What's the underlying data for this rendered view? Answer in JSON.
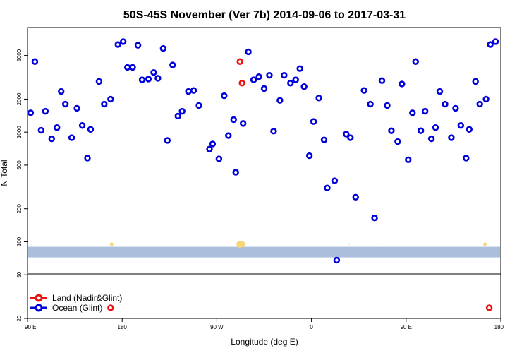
{
  "chart_data": {
    "type": "scatter",
    "title": "50S-45S November (Ver 7b)   2014-09-06 to 2017-03-31",
    "xlabel": "Longitude (deg E)",
    "ylabel": "N Total",
    "x_ticks": [
      {
        "value": 90,
        "label": "90 E"
      },
      {
        "value": 180,
        "label": "180"
      },
      {
        "value": 270,
        "label": "90 W"
      },
      {
        "value": 360,
        "label": "0"
      },
      {
        "value": 450,
        "label": "90 E"
      },
      {
        "value": 540,
        "label": "180"
      }
    ],
    "xlim": [
      90,
      540
    ],
    "y_scale": "log",
    "ylim": [
      20,
      9000
    ],
    "y_ticks": [
      20,
      50,
      100,
      200,
      500,
      1000,
      2000,
      5000
    ],
    "colors": {
      "ocean": "#0000dd",
      "land": "#ee1111",
      "band": "#a9bfdc",
      "sun": "#f5d77a"
    },
    "legend": {
      "placement": "bottom-left",
      "entries": [
        {
          "label": "Land (Nadir&Glint)",
          "color": "#ee1111"
        },
        {
          "label": "Ocean (Glint)",
          "color": "#0000dd"
        }
      ]
    },
    "series": [
      {
        "name": "Ocean (Glint)",
        "color": "#0000dd",
        "points": [
          [
            93,
            1500
          ],
          [
            97,
            4400
          ],
          [
            103,
            1040
          ],
          [
            107,
            1550
          ],
          [
            113,
            870
          ],
          [
            118,
            1100
          ],
          [
            122,
            2350
          ],
          [
            126,
            1800
          ],
          [
            132,
            890
          ],
          [
            137,
            1650
          ],
          [
            142,
            1150
          ],
          [
            147,
            580
          ],
          [
            150,
            1060
          ],
          [
            158,
            2900
          ],
          [
            163,
            1800
          ],
          [
            169,
            2000
          ],
          [
            176,
            6300
          ],
          [
            181,
            6700
          ],
          [
            185,
            3900
          ],
          [
            190,
            3900
          ],
          [
            195,
            6200
          ],
          [
            199,
            3000
          ],
          [
            205,
            3050
          ],
          [
            210,
            3500
          ],
          [
            214,
            3100
          ],
          [
            219,
            5800
          ],
          [
            223,
            840
          ],
          [
            228,
            4100
          ],
          [
            233,
            1400
          ],
          [
            237,
            1550
          ],
          [
            243,
            2350
          ],
          [
            248,
            2400
          ],
          [
            253,
            1750
          ],
          [
            263,
            700
          ],
          [
            266,
            780
          ],
          [
            272,
            570
          ],
          [
            277,
            2150
          ],
          [
            281,
            930
          ],
          [
            286,
            1300
          ],
          [
            288,
            430
          ],
          [
            295,
            1200
          ],
          [
            300,
            5400
          ],
          [
            305,
            3000
          ],
          [
            310,
            3200
          ],
          [
            315,
            2500
          ],
          [
            320,
            3300
          ],
          [
            324,
            1020
          ],
          [
            330,
            1950
          ],
          [
            334,
            3300
          ],
          [
            340,
            2800
          ],
          [
            345,
            3000
          ],
          [
            349,
            3800
          ],
          [
            353,
            2600
          ],
          [
            358,
            610
          ],
          [
            362,
            1250
          ],
          [
            367,
            2050
          ],
          [
            372,
            850
          ],
          [
            375,
            310
          ],
          [
            382,
            360
          ],
          [
            384,
            68
          ],
          [
            393,
            960
          ],
          [
            397,
            890
          ],
          [
            402,
            255
          ],
          [
            410,
            2400
          ],
          [
            416,
            1800
          ],
          [
            420,
            165
          ],
          [
            427,
            2950
          ],
          [
            432,
            1750
          ],
          [
            436,
            1030
          ],
          [
            442,
            820
          ],
          [
            446,
            2750
          ],
          [
            452,
            560
          ],
          [
            456,
            1500
          ],
          [
            459,
            4400
          ],
          [
            464,
            1030
          ],
          [
            468,
            1550
          ],
          [
            474,
            870
          ],
          [
            478,
            1100
          ],
          [
            482,
            2350
          ],
          [
            487,
            1800
          ],
          [
            493,
            890
          ],
          [
            497,
            1650
          ],
          [
            502,
            1150
          ],
          [
            507,
            580
          ],
          [
            510,
            1060
          ],
          [
            516,
            2900
          ],
          [
            520,
            1800
          ],
          [
            526,
            2000
          ],
          [
            530,
            6300
          ],
          [
            535,
            6700
          ]
        ]
      },
      {
        "name": "Land (Nadir&Glint)",
        "color": "#ee1111",
        "points": [
          [
            292,
            4400
          ],
          [
            294,
            2800
          ],
          [
            169,
            25
          ],
          [
            529,
            25
          ]
        ]
      }
    ]
  }
}
